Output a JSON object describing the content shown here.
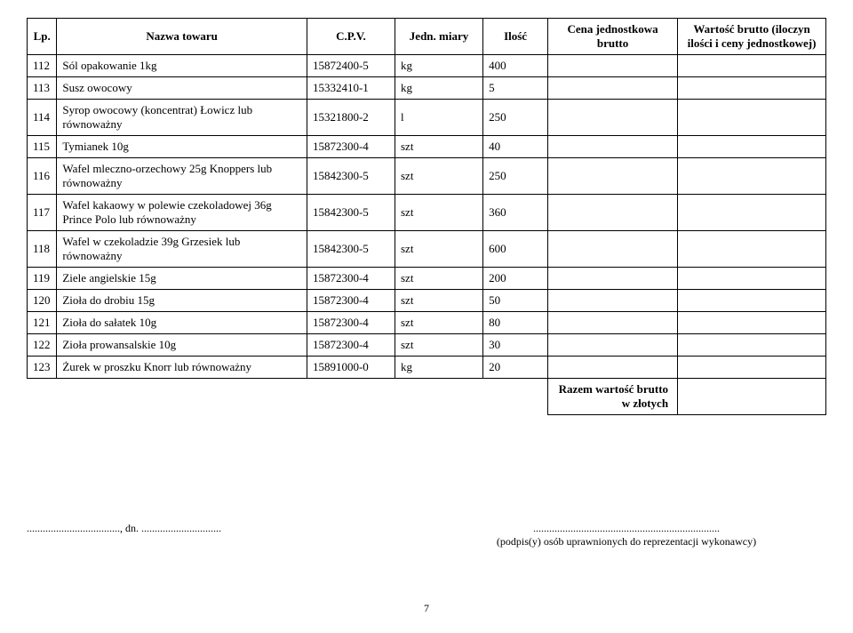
{
  "headers": {
    "lp": "Lp.",
    "name": "Nazwa towaru",
    "cpv": "C.P.V.",
    "unit": "Jedn. miary",
    "qty": "Ilość",
    "price": "Cena jednostkowa brutto",
    "total": "Wartość brutto (iloczyn ilości i ceny jednostkowej)"
  },
  "rows": [
    {
      "lp": "112",
      "name": "Sól opakowanie 1kg",
      "cpv": "15872400-5",
      "unit": "kg",
      "qty": "400"
    },
    {
      "lp": "113",
      "name": "Susz owocowy",
      "cpv": "15332410-1",
      "unit": "kg",
      "qty": "5"
    },
    {
      "lp": "114",
      "name": "Syrop owocowy (koncentrat) Łowicz lub równoważny",
      "cpv": "15321800-2",
      "unit": "l",
      "qty": "250"
    },
    {
      "lp": "115",
      "name": "Tymianek 10g",
      "cpv": "15872300-4",
      "unit": "szt",
      "qty": "40"
    },
    {
      "lp": "116",
      "name": "Wafel mleczno-orzechowy 25g Knoppers lub równoważny",
      "cpv": "15842300-5",
      "unit": "szt",
      "qty": "250"
    },
    {
      "lp": "117",
      "name": "Wafel kakaowy w polewie czekoladowej 36g Prince Polo lub równoważny",
      "cpv": "15842300-5",
      "unit": "szt",
      "qty": "360"
    },
    {
      "lp": "118",
      "name": "Wafel w czekoladzie 39g Grzesiek lub równoważny",
      "cpv": "15842300-5",
      "unit": "szt",
      "qty": "600"
    },
    {
      "lp": "119",
      "name": "Ziele angielskie 15g",
      "cpv": "15872300-4",
      "unit": "szt",
      "qty": "200"
    },
    {
      "lp": "120",
      "name": "Zioła do drobiu 15g",
      "cpv": "15872300-4",
      "unit": "szt",
      "qty": "50"
    },
    {
      "lp": "121",
      "name": "Zioła do sałatek 10g",
      "cpv": "15872300-4",
      "unit": "szt",
      "qty": "80"
    },
    {
      "lp": "122",
      "name": "Zioła prowansalskie 10g",
      "cpv": "15872300-4",
      "unit": "szt",
      "qty": "30"
    },
    {
      "lp": "123",
      "name": "Żurek w proszku Knorr lub równoważny",
      "cpv": "15891000-0",
      "unit": "kg",
      "qty": "20"
    }
  ],
  "summary_label": "Razem wartość brutto w złotych",
  "footer": {
    "date_line": "..................................., dn. ..............................",
    "sign_dots": "......................................................................",
    "sign_label": "(podpis(y) osób uprawnionych do reprezentacji wykonawcy)"
  },
  "page_number": "7"
}
